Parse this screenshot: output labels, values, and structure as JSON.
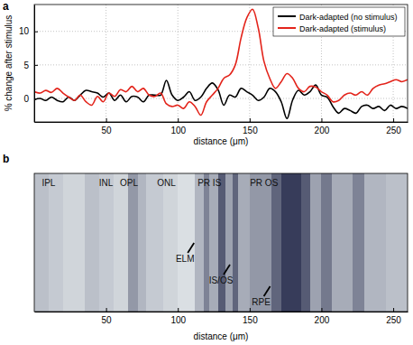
{
  "chart_data": [
    {
      "type": "line",
      "panel_label": "a",
      "xlabel": "distance (μm)",
      "ylabel": "% change after stimulus",
      "xlim": [
        0,
        260
      ],
      "ylim": [
        -3.5,
        14
      ],
      "xticks": [
        50,
        100,
        150,
        200,
        250
      ],
      "yticks": [
        0,
        5,
        10
      ],
      "grid": true,
      "legend": "upper right",
      "x": [
        0,
        4,
        8,
        12,
        16,
        20,
        24,
        28,
        32,
        36,
        40,
        44,
        48,
        52,
        56,
        60,
        64,
        68,
        72,
        76,
        80,
        84,
        88,
        92,
        96,
        100,
        104,
        108,
        112,
        116,
        120,
        124,
        128,
        132,
        136,
        140,
        144,
        148,
        152,
        156,
        160,
        164,
        168,
        172,
        176,
        180,
        184,
        188,
        192,
        196,
        200,
        204,
        208,
        212,
        216,
        220,
        224,
        228,
        232,
        236,
        240,
        244,
        248,
        252,
        256,
        260
      ],
      "series": [
        {
          "name": "Dark-adapted (no stimulus)",
          "color": "#000000",
          "values": [
            -0.2,
            0,
            -0.3,
            0.2,
            -0.3,
            -0.5,
            0.2,
            -0.3,
            0.5,
            1.2,
            1.0,
            0.8,
            0.2,
            0.8,
            -0.3,
            0.5,
            -0.5,
            0.3,
            0.2,
            -0.5,
            0.5,
            0.5,
            0.5,
            2.7,
            0.5,
            -0.3,
            0.2,
            1.0,
            -0.3,
            0.2,
            1.5,
            2.3,
            1.3,
            -1.0,
            0.5,
            0.2,
            1.5,
            1.0,
            0.5,
            -0.3,
            0.2,
            1.5,
            1.0,
            -0.5,
            -3.0,
            -0.2,
            1.2,
            0.5,
            1.0,
            2.0,
            0.5,
            0.2,
            -1.2,
            -2.2,
            -1.5,
            -1.8,
            -2.2,
            -1.2,
            -1.0,
            -1.5,
            -1.2,
            -1.8,
            -1.0,
            -1.5,
            -1.2,
            -1.5
          ]
        },
        {
          "name": "Dark-adapted (stimulus)",
          "color": "#e3241b",
          "values": [
            1.0,
            0.8,
            1.2,
            0.9,
            1.5,
            0.8,
            0.2,
            -0.3,
            0.5,
            -0.5,
            -1.0,
            0.3,
            -0.5,
            0.8,
            0.3,
            1.3,
            1.0,
            1.8,
            1.0,
            1.5,
            0.5,
            0.3,
            0.8,
            -0.8,
            -1.2,
            -1.0,
            -1.5,
            -0.5,
            -1.2,
            -2.5,
            -0.5,
            0.5,
            1.5,
            3.0,
            3.5,
            5.0,
            9.0,
            12.0,
            13.3,
            10.5,
            5.5,
            3.0,
            1.5,
            2.5,
            3.7,
            3.0,
            1.5,
            1.0,
            1.8,
            1.7,
            1.0,
            0.5,
            -0.5,
            -0.3,
            0.5,
            0.8,
            0.5,
            1.0,
            0.5,
            1.5,
            2.0,
            2.2,
            2.5,
            2.8,
            2.5,
            2.8
          ]
        }
      ]
    },
    {
      "type": "heatmap",
      "panel_label": "b",
      "xlabel": "distance (μm)",
      "xlim": [
        0,
        260
      ],
      "xticks": [
        50,
        100,
        150,
        200,
        250
      ],
      "bins": [
        0,
        10,
        20,
        35,
        45,
        55,
        65,
        72,
        78,
        90,
        100,
        112,
        118,
        122,
        128,
        133,
        138,
        142,
        150,
        165,
        172,
        186,
        192,
        200,
        207,
        222,
        230,
        245,
        260
      ],
      "intensity": [
        0.25,
        0.2,
        0.15,
        0.25,
        0.2,
        0.15,
        0.45,
        0.3,
        0.2,
        0.15,
        0.1,
        0.3,
        0.55,
        0.35,
        0.75,
        0.4,
        0.7,
        0.35,
        0.45,
        0.7,
        0.9,
        0.75,
        0.4,
        0.6,
        0.35,
        0.55,
        0.3,
        0.25
      ],
      "intensity_range": [
        0,
        1
      ],
      "layer_labels": [
        {
          "text": "IPL",
          "x": 10
        },
        {
          "text": "INL",
          "x": 50
        },
        {
          "text": "OPL",
          "x": 66
        },
        {
          "text": "ONL",
          "x": 92
        },
        {
          "text": "PR IS",
          "x": 122
        },
        {
          "text": "PR OS",
          "x": 160
        }
      ],
      "annotations": [
        {
          "text": "ELM",
          "x": 105
        },
        {
          "text": "IS/OS",
          "x": 130
        },
        {
          "text": "RPE",
          "x": 158
        }
      ]
    }
  ]
}
